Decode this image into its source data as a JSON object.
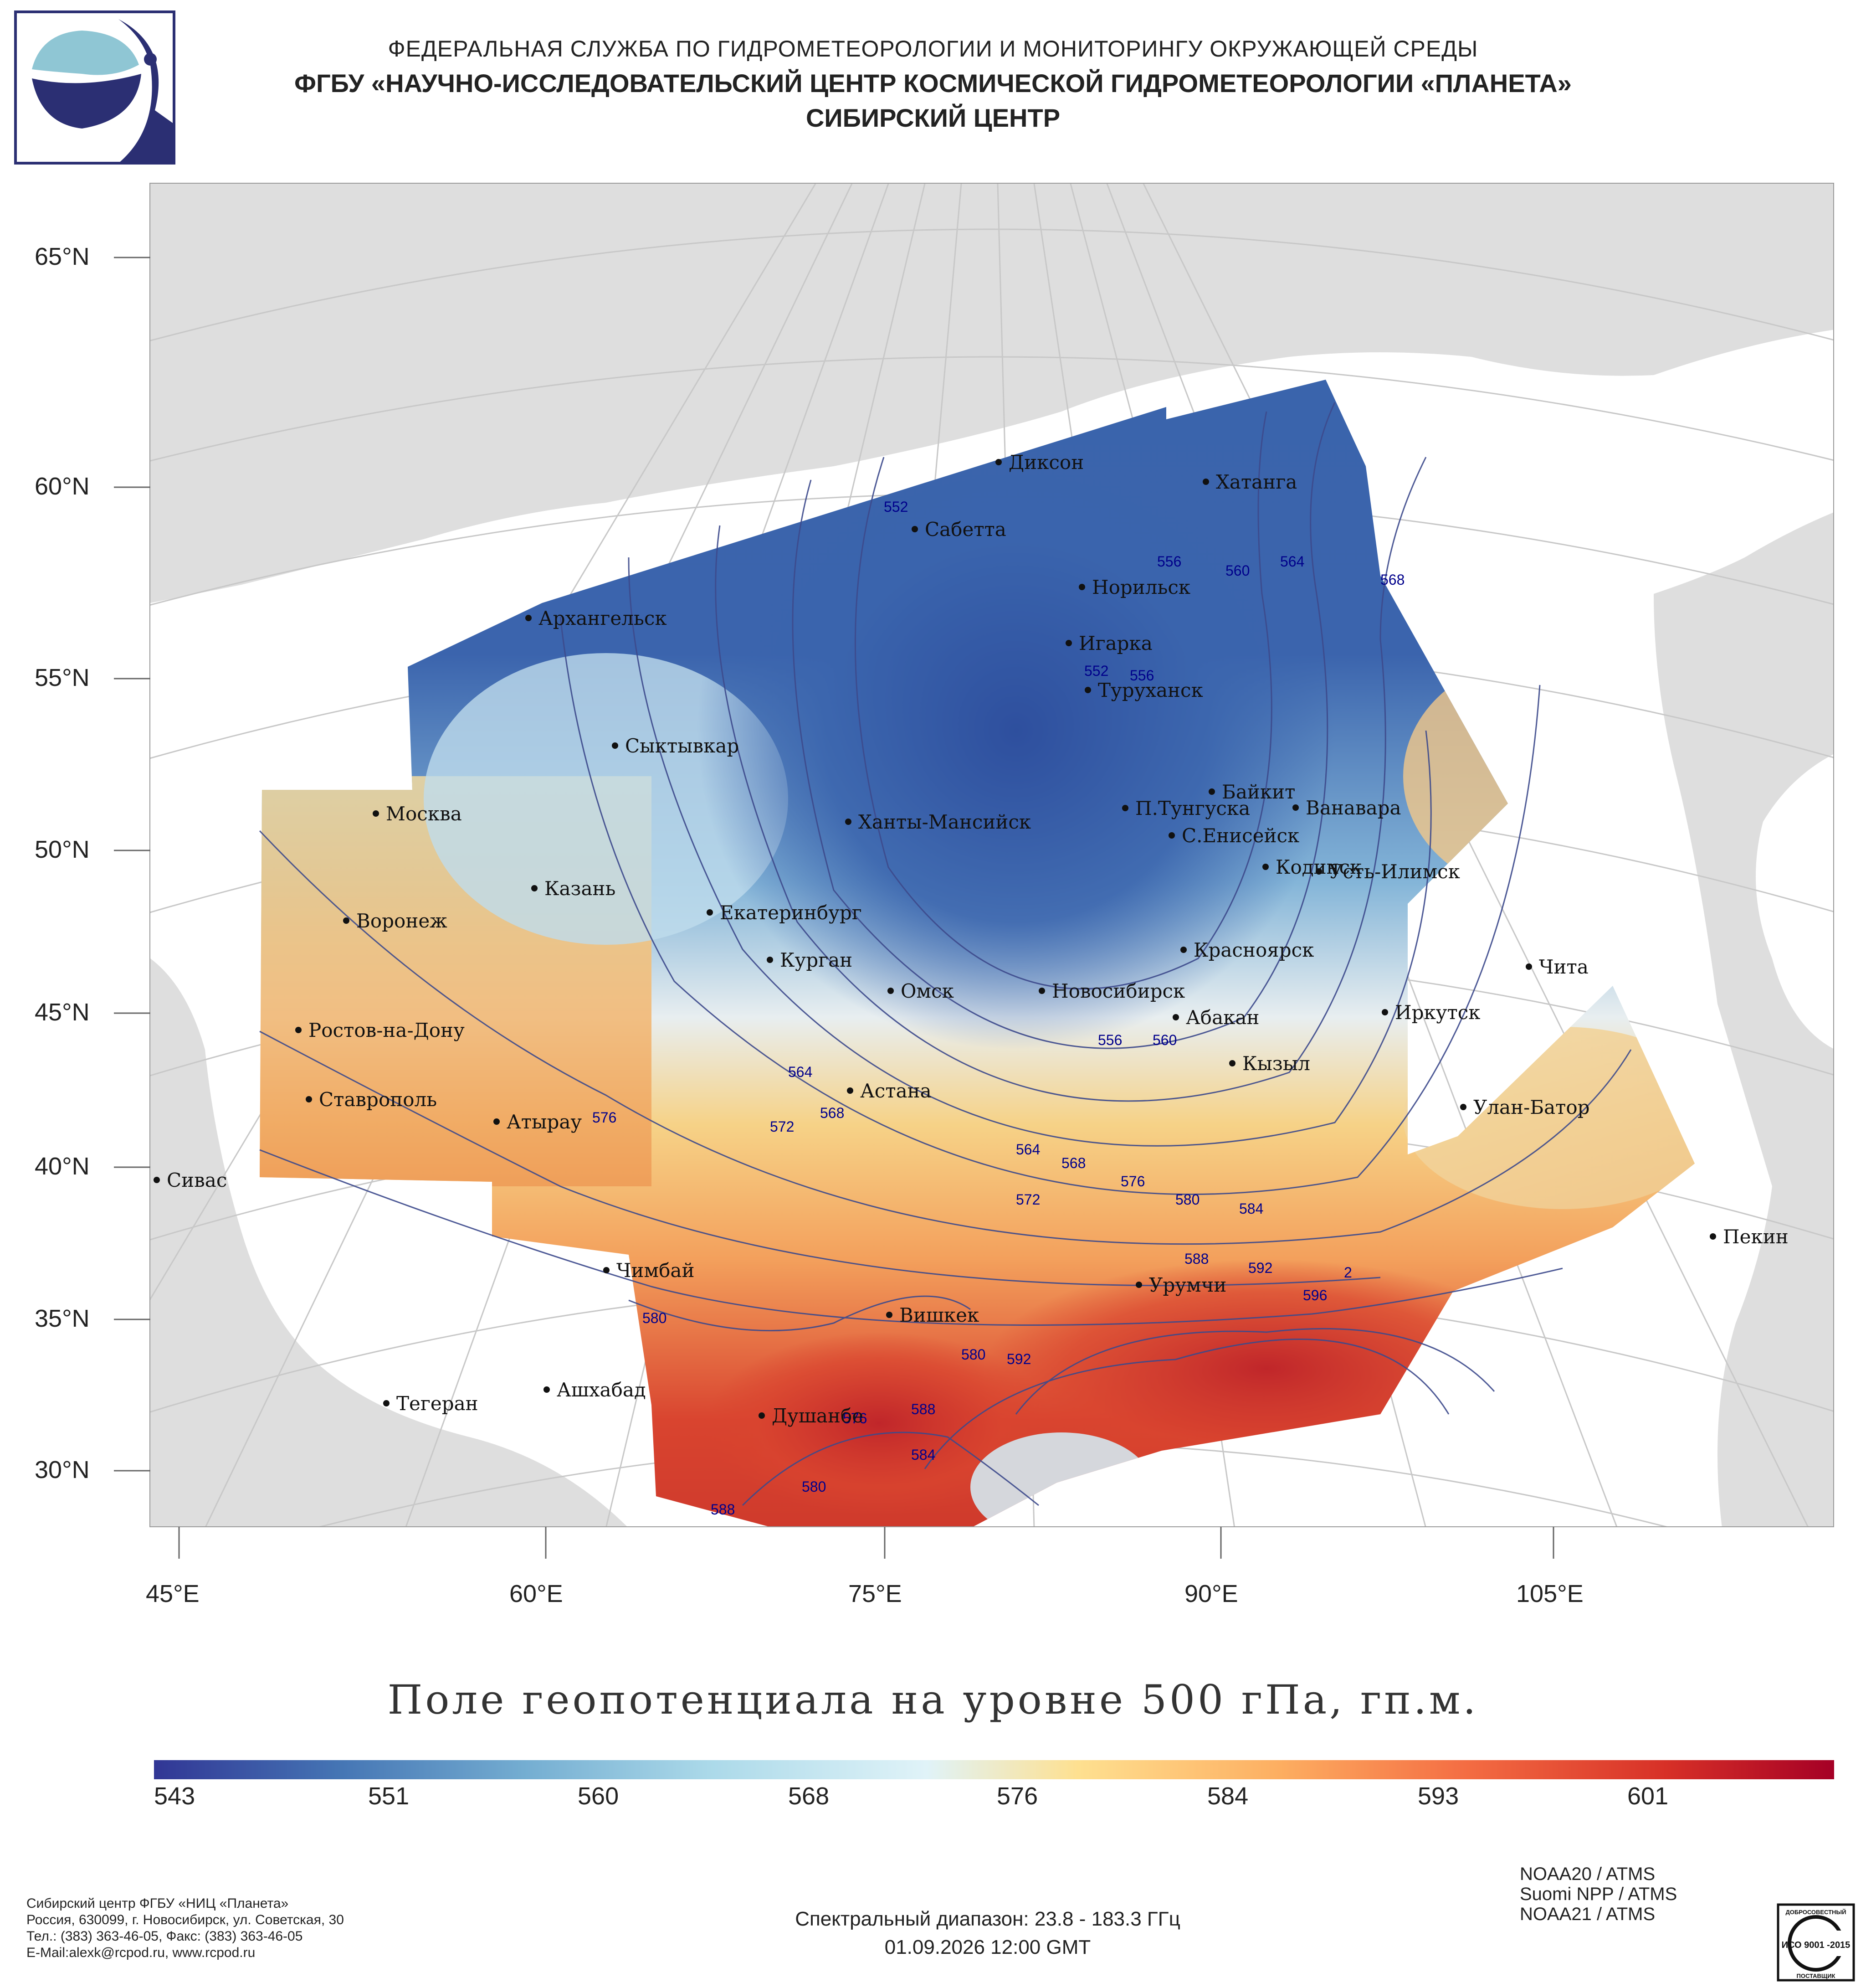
{
  "header": {
    "line1": "ФЕДЕРАЛЬНАЯ СЛУЖБА ПО ГИДРОМЕТЕОРОЛОГИИ И МОНИТОРИНГУ ОКРУЖАЮЩЕЙ СРЕДЫ",
    "line2": "ФГБУ «НАУЧНО-ИССЛЕДОВАТЕЛЬСКИЙ ЦЕНТР КОСМИЧЕСКОЙ ГИДРОМЕТЕОРОЛОГИИ «ПЛАНЕТА»",
    "line3": "СИБИРСКИЙ ЦЕНТР"
  },
  "map": {
    "lat_labels": [
      "65°N",
      "60°N",
      "55°N",
      "50°N",
      "45°N",
      "40°N",
      "35°N",
      "30°N"
    ],
    "lon_labels": [
      "45°E",
      "60°E",
      "75°E",
      "90°E",
      "105°E"
    ],
    "cities": [
      "Диксон",
      "Хатанга",
      "Сабетта",
      "Норильск",
      "Архангельск",
      "Игарка",
      "Туруханск",
      "Сыктывкар",
      "Байкит",
      "Москва",
      "П.Тунгуска",
      "Ванавара",
      "Ханты-Мансийск",
      "С.Енисейск",
      "Кодинск",
      "Усть-Илимск",
      "Казань",
      "Екатеринбург",
      "Воронеж",
      "Красноярск",
      "Курган",
      "Чита",
      "Омск",
      "Новосибирск",
      "Иркутск",
      "Абакан",
      "Ростов-на-Дону",
      "Кызыл",
      "Астана",
      "Ставрополь",
      "Улан-Батор",
      "Атырау",
      "Сивас",
      "Пекин",
      "Чимбай",
      "Урумчи",
      "Вишкек",
      "Ашхабад",
      "Тегеран",
      "Душанбе"
    ],
    "isolines": [
      "552",
      "556",
      "560",
      "564",
      "568",
      "552",
      "556",
      "564",
      "572",
      "568",
      "576",
      "564",
      "568",
      "572",
      "576",
      "580",
      "584",
      "588",
      "592",
      "596",
      "2",
      "580",
      "592",
      "588",
      "584",
      "576",
      "580",
      "588",
      "580",
      "556",
      "560"
    ]
  },
  "title": "Поле геопотенциала на уровне 500 гПа, гп.м.",
  "colorbar": {
    "labels": [
      "543",
      "551",
      "560",
      "568",
      "576",
      "584",
      "593",
      "601"
    ],
    "colors": [
      "#313695",
      "#4575b4",
      "#74add1",
      "#abd9e9",
      "#e0f3f8",
      "#fee090",
      "#fdae61",
      "#f46d43",
      "#d73027",
      "#a50026"
    ]
  },
  "footer": {
    "org": "Сибирский центр ФГБУ «НИЦ «Планета»",
    "address": "Россия, 630099, г. Новосибирск, ул. Советская, 30",
    "phone": "Тел.: (383) 363-46-05, Факс: (383) 363-46-05",
    "email": "E-Mail:alexk@rcpod.ru, www.rcpod.ru",
    "spectral": "Спектральный диапазон: 23.8 - 183.3 ГГц",
    "datetime": "01.09.2026 12:00 GMT",
    "sat1": "NOAA20 / ATMS",
    "sat2": "Suomi NPP / ATMS",
    "sat3": "NOAA21 / ATMS",
    "iso_text": "ИСО 9001 -2015",
    "iso_top": "ДОБРОСОВЕСТНЫЙ",
    "iso_bottom": "ПОСТАВЩИК"
  }
}
